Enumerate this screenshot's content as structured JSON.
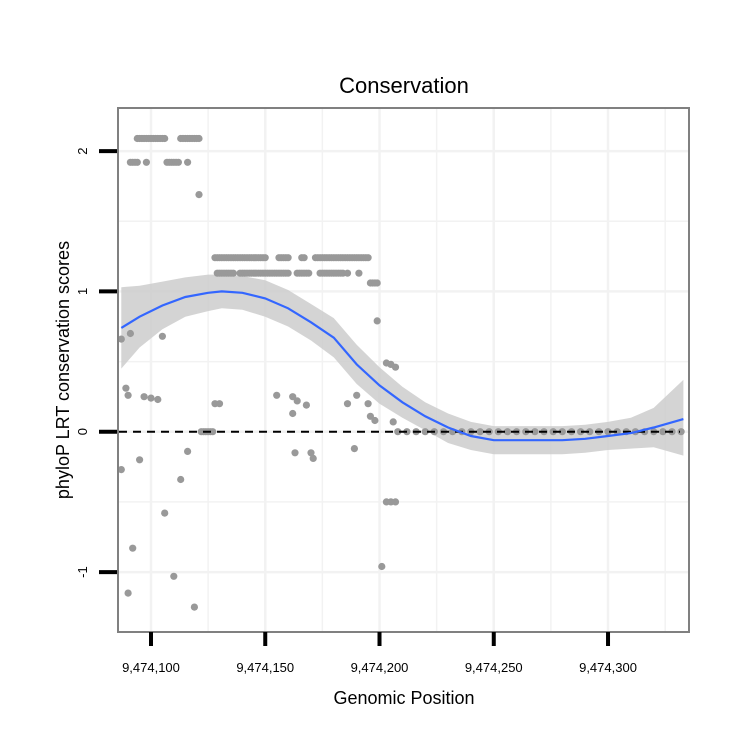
{
  "chart_data": {
    "type": "scatter",
    "title": "Conservation",
    "xlabel": "Genomic Position",
    "ylabel": "phyloP LRT conservation scores",
    "xlim": [
      9474086,
      9474335
    ],
    "ylim": [
      -1.42,
      2.3
    ],
    "x_ticks": [
      {
        "value": 9474100,
        "label": "9,474,100"
      },
      {
        "value": 9474150,
        "label": "9,474,150"
      },
      {
        "value": 9474200,
        "label": "9,474,200"
      },
      {
        "value": 9474250,
        "label": "9,474,250"
      },
      {
        "value": 9474300,
        "label": "9,474,300"
      }
    ],
    "y_ticks": [
      {
        "value": -1,
        "label": "-1"
      },
      {
        "value": 0,
        "label": "0"
      },
      {
        "value": 1,
        "label": "1"
      },
      {
        "value": 2,
        "label": "2"
      }
    ],
    "minor_x": [
      9474125,
      9474175,
      9474225,
      9474275,
      9474325
    ],
    "minor_y": [
      -0.5,
      0.5,
      1.5
    ],
    "reference_line": {
      "y": 0,
      "style": "dashed",
      "color": "#000000"
    },
    "colors": {
      "points": "#999999",
      "smooth_line": "#3366FF",
      "confidence_band": "#CCCCCC",
      "panel_border": "#808080",
      "grid": "#F2F2F2"
    },
    "points": [
      {
        "x": 9474094,
        "y": 2.09
      },
      {
        "x": 9474095,
        "y": 2.09
      },
      {
        "x": 9474096,
        "y": 2.09
      },
      {
        "x": 9474097,
        "y": 2.09
      },
      {
        "x": 9474098,
        "y": 2.09
      },
      {
        "x": 9474099,
        "y": 2.09
      },
      {
        "x": 9474100,
        "y": 2.09
      },
      {
        "x": 9474101,
        "y": 2.09
      },
      {
        "x": 9474102,
        "y": 2.09
      },
      {
        "x": 9474103,
        "y": 2.09
      },
      {
        "x": 9474104,
        "y": 2.09
      },
      {
        "x": 9474105,
        "y": 2.09
      },
      {
        "x": 9474106,
        "y": 2.09
      },
      {
        "x": 9474113,
        "y": 2.09
      },
      {
        "x": 9474114,
        "y": 2.09
      },
      {
        "x": 9474115,
        "y": 2.09
      },
      {
        "x": 9474116,
        "y": 2.09
      },
      {
        "x": 9474117,
        "y": 2.09
      },
      {
        "x": 9474118,
        "y": 2.09
      },
      {
        "x": 9474119,
        "y": 2.09
      },
      {
        "x": 9474120,
        "y": 2.09
      },
      {
        "x": 9474121,
        "y": 2.09
      },
      {
        "x": 9474091,
        "y": 1.92
      },
      {
        "x": 9474092,
        "y": 1.92
      },
      {
        "x": 9474093,
        "y": 1.92
      },
      {
        "x": 9474094,
        "y": 1.92
      },
      {
        "x": 9474098,
        "y": 1.92
      },
      {
        "x": 9474107,
        "y": 1.92
      },
      {
        "x": 9474108,
        "y": 1.92
      },
      {
        "x": 9474109,
        "y": 1.92
      },
      {
        "x": 9474110,
        "y": 1.92
      },
      {
        "x": 9474111,
        "y": 1.92
      },
      {
        "x": 9474112,
        "y": 1.92
      },
      {
        "x": 9474116,
        "y": 1.92
      },
      {
        "x": 9474121,
        "y": 1.69
      },
      {
        "x": 9474128,
        "y": 1.24
      },
      {
        "x": 9474129,
        "y": 1.24
      },
      {
        "x": 9474130,
        "y": 1.24
      },
      {
        "x": 9474131,
        "y": 1.24
      },
      {
        "x": 9474132,
        "y": 1.24
      },
      {
        "x": 9474133,
        "y": 1.24
      },
      {
        "x": 9474134,
        "y": 1.24
      },
      {
        "x": 9474135,
        "y": 1.24
      },
      {
        "x": 9474136,
        "y": 1.24
      },
      {
        "x": 9474137,
        "y": 1.24
      },
      {
        "x": 9474138,
        "y": 1.24
      },
      {
        "x": 9474139,
        "y": 1.24
      },
      {
        "x": 9474140,
        "y": 1.24
      },
      {
        "x": 9474141,
        "y": 1.24
      },
      {
        "x": 9474142,
        "y": 1.24
      },
      {
        "x": 9474143,
        "y": 1.24
      },
      {
        "x": 9474144,
        "y": 1.24
      },
      {
        "x": 9474145,
        "y": 1.24
      },
      {
        "x": 9474146,
        "y": 1.24
      },
      {
        "x": 9474147,
        "y": 1.24
      },
      {
        "x": 9474148,
        "y": 1.24
      },
      {
        "x": 9474149,
        "y": 1.24
      },
      {
        "x": 9474150,
        "y": 1.24
      },
      {
        "x": 9474156,
        "y": 1.24
      },
      {
        "x": 9474157,
        "y": 1.24
      },
      {
        "x": 9474158,
        "y": 1.24
      },
      {
        "x": 9474159,
        "y": 1.24
      },
      {
        "x": 9474160,
        "y": 1.24
      },
      {
        "x": 9474166,
        "y": 1.24
      },
      {
        "x": 9474167,
        "y": 1.24
      },
      {
        "x": 9474172,
        "y": 1.24
      },
      {
        "x": 9474173,
        "y": 1.24
      },
      {
        "x": 9474174,
        "y": 1.24
      },
      {
        "x": 9474175,
        "y": 1.24
      },
      {
        "x": 9474176,
        "y": 1.24
      },
      {
        "x": 9474177,
        "y": 1.24
      },
      {
        "x": 9474178,
        "y": 1.24
      },
      {
        "x": 9474179,
        "y": 1.24
      },
      {
        "x": 9474180,
        "y": 1.24
      },
      {
        "x": 9474181,
        "y": 1.24
      },
      {
        "x": 9474182,
        "y": 1.24
      },
      {
        "x": 9474183,
        "y": 1.24
      },
      {
        "x": 9474184,
        "y": 1.24
      },
      {
        "x": 9474185,
        "y": 1.24
      },
      {
        "x": 9474186,
        "y": 1.24
      },
      {
        "x": 9474187,
        "y": 1.24
      },
      {
        "x": 9474188,
        "y": 1.24
      },
      {
        "x": 9474189,
        "y": 1.24
      },
      {
        "x": 9474190,
        "y": 1.24
      },
      {
        "x": 9474191,
        "y": 1.24
      },
      {
        "x": 9474192,
        "y": 1.24
      },
      {
        "x": 9474193,
        "y": 1.24
      },
      {
        "x": 9474194,
        "y": 1.24
      },
      {
        "x": 9474195,
        "y": 1.24
      },
      {
        "x": 9474129,
        "y": 1.13
      },
      {
        "x": 9474130,
        "y": 1.13
      },
      {
        "x": 9474131,
        "y": 1.13
      },
      {
        "x": 9474132,
        "y": 1.13
      },
      {
        "x": 9474133,
        "y": 1.13
      },
      {
        "x": 9474134,
        "y": 1.13
      },
      {
        "x": 9474135,
        "y": 1.13
      },
      {
        "x": 9474136,
        "y": 1.13
      },
      {
        "x": 9474139,
        "y": 1.13
      },
      {
        "x": 9474140,
        "y": 1.13
      },
      {
        "x": 9474141,
        "y": 1.13
      },
      {
        "x": 9474142,
        "y": 1.13
      },
      {
        "x": 9474143,
        "y": 1.13
      },
      {
        "x": 9474144,
        "y": 1.13
      },
      {
        "x": 9474145,
        "y": 1.13
      },
      {
        "x": 9474146,
        "y": 1.13
      },
      {
        "x": 9474147,
        "y": 1.13
      },
      {
        "x": 9474148,
        "y": 1.13
      },
      {
        "x": 9474149,
        "y": 1.13
      },
      {
        "x": 9474150,
        "y": 1.13
      },
      {
        "x": 9474151,
        "y": 1.13
      },
      {
        "x": 9474152,
        "y": 1.13
      },
      {
        "x": 9474153,
        "y": 1.13
      },
      {
        "x": 9474154,
        "y": 1.13
      },
      {
        "x": 9474155,
        "y": 1.13
      },
      {
        "x": 9474156,
        "y": 1.13
      },
      {
        "x": 9474157,
        "y": 1.13
      },
      {
        "x": 9474158,
        "y": 1.13
      },
      {
        "x": 9474159,
        "y": 1.13
      },
      {
        "x": 9474160,
        "y": 1.13
      },
      {
        "x": 9474164,
        "y": 1.13
      },
      {
        "x": 9474165,
        "y": 1.13
      },
      {
        "x": 9474166,
        "y": 1.13
      },
      {
        "x": 9474167,
        "y": 1.13
      },
      {
        "x": 9474168,
        "y": 1.13
      },
      {
        "x": 9474169,
        "y": 1.13
      },
      {
        "x": 9474174,
        "y": 1.13
      },
      {
        "x": 9474175,
        "y": 1.13
      },
      {
        "x": 9474176,
        "y": 1.13
      },
      {
        "x": 9474177,
        "y": 1.13
      },
      {
        "x": 9474178,
        "y": 1.13
      },
      {
        "x": 9474179,
        "y": 1.13
      },
      {
        "x": 9474180,
        "y": 1.13
      },
      {
        "x": 9474181,
        "y": 1.13
      },
      {
        "x": 9474182,
        "y": 1.13
      },
      {
        "x": 9474183,
        "y": 1.13
      },
      {
        "x": 9474184,
        "y": 1.13
      },
      {
        "x": 9474186,
        "y": 1.13
      },
      {
        "x": 9474191,
        "y": 1.13
      },
      {
        "x": 9474196,
        "y": 1.06
      },
      {
        "x": 9474197,
        "y": 1.06
      },
      {
        "x": 9474198,
        "y": 1.06
      },
      {
        "x": 9474199,
        "y": 1.06
      },
      {
        "x": 9474087,
        "y": 0.66
      },
      {
        "x": 9474091,
        "y": 0.7
      },
      {
        "x": 9474105,
        "y": 0.68
      },
      {
        "x": 9474199,
        "y": 0.79
      },
      {
        "x": 9474203,
        "y": 0.49
      },
      {
        "x": 9474205,
        "y": 0.48
      },
      {
        "x": 9474207,
        "y": 0.46
      },
      {
        "x": 9474089,
        "y": 0.31
      },
      {
        "x": 9474090,
        "y": 0.26
      },
      {
        "x": 9474097,
        "y": 0.25
      },
      {
        "x": 9474100,
        "y": 0.24
      },
      {
        "x": 9474103,
        "y": 0.23
      },
      {
        "x": 9474128,
        "y": 0.2
      },
      {
        "x": 9474130,
        "y": 0.2
      },
      {
        "x": 9474155,
        "y": 0.26
      },
      {
        "x": 9474162,
        "y": 0.25
      },
      {
        "x": 9474164,
        "y": 0.22
      },
      {
        "x": 9474168,
        "y": 0.19
      },
      {
        "x": 9474162,
        "y": 0.13
      },
      {
        "x": 9474186,
        "y": 0.2
      },
      {
        "x": 9474190,
        "y": 0.26
      },
      {
        "x": 9474195,
        "y": 0.2
      },
      {
        "x": 9474196,
        "y": 0.11
      },
      {
        "x": 9474198,
        "y": 0.08
      },
      {
        "x": 9474206,
        "y": 0.07
      },
      {
        "x": 9474122,
        "y": 0.0
      },
      {
        "x": 9474123,
        "y": 0.0
      },
      {
        "x": 9474124,
        "y": 0.0
      },
      {
        "x": 9474125,
        "y": 0.0
      },
      {
        "x": 9474126,
        "y": 0.0
      },
      {
        "x": 9474127,
        "y": 0.0
      },
      {
        "x": 9474208,
        "y": 0.0
      },
      {
        "x": 9474212,
        "y": 0.0
      },
      {
        "x": 9474216,
        "y": 0.0
      },
      {
        "x": 9474220,
        "y": 0.0
      },
      {
        "x": 9474224,
        "y": 0.0
      },
      {
        "x": 9474228,
        "y": 0.0
      },
      {
        "x": 9474232,
        "y": 0.0
      },
      {
        "x": 9474236,
        "y": 0.0
      },
      {
        "x": 9474240,
        "y": 0.0
      },
      {
        "x": 9474244,
        "y": 0.0
      },
      {
        "x": 9474248,
        "y": 0.0
      },
      {
        "x": 9474252,
        "y": 0.0
      },
      {
        "x": 9474256,
        "y": 0.0
      },
      {
        "x": 9474260,
        "y": 0.0
      },
      {
        "x": 9474264,
        "y": 0.0
      },
      {
        "x": 9474268,
        "y": 0.0
      },
      {
        "x": 9474272,
        "y": 0.0
      },
      {
        "x": 9474276,
        "y": 0.0
      },
      {
        "x": 9474280,
        "y": 0.0
      },
      {
        "x": 9474284,
        "y": 0.0
      },
      {
        "x": 9474288,
        "y": 0.0
      },
      {
        "x": 9474292,
        "y": 0.0
      },
      {
        "x": 9474296,
        "y": 0.0
      },
      {
        "x": 9474300,
        "y": 0.0
      },
      {
        "x": 9474304,
        "y": 0.0
      },
      {
        "x": 9474308,
        "y": 0.0
      },
      {
        "x": 9474312,
        "y": 0.0
      },
      {
        "x": 9474316,
        "y": 0.0
      },
      {
        "x": 9474320,
        "y": 0.0
      },
      {
        "x": 9474324,
        "y": 0.0
      },
      {
        "x": 9474328,
        "y": 0.0
      },
      {
        "x": 9474332,
        "y": 0.0
      },
      {
        "x": 9474087,
        "y": -0.27
      },
      {
        "x": 9474116,
        "y": -0.14
      },
      {
        "x": 9474163,
        "y": -0.15
      },
      {
        "x": 9474170,
        "y": -0.15
      },
      {
        "x": 9474171,
        "y": -0.19
      },
      {
        "x": 9474189,
        "y": -0.12
      },
      {
        "x": 9474095,
        "y": -0.2
      },
      {
        "x": 9474113,
        "y": -0.34
      },
      {
        "x": 9474106,
        "y": -0.58
      },
      {
        "x": 9474203,
        "y": -0.5
      },
      {
        "x": 9474205,
        "y": -0.5
      },
      {
        "x": 9474207,
        "y": -0.5
      },
      {
        "x": 9474092,
        "y": -0.83
      },
      {
        "x": 9474110,
        "y": -1.03
      },
      {
        "x": 9474201,
        "y": -0.96
      },
      {
        "x": 9474090,
        "y": -1.15
      },
      {
        "x": 9474119,
        "y": -1.25
      }
    ],
    "smooth": [
      {
        "x": 9474087,
        "y": 0.74
      },
      {
        "x": 9474095,
        "y": 0.82
      },
      {
        "x": 9474105,
        "y": 0.9
      },
      {
        "x": 9474115,
        "y": 0.96
      },
      {
        "x": 9474125,
        "y": 0.99
      },
      {
        "x": 9474131,
        "y": 1.0
      },
      {
        "x": 9474140,
        "y": 0.99
      },
      {
        "x": 9474150,
        "y": 0.95
      },
      {
        "x": 9474160,
        "y": 0.88
      },
      {
        "x": 9474170,
        "y": 0.78
      },
      {
        "x": 9474180,
        "y": 0.67
      },
      {
        "x": 9474190,
        "y": 0.48
      },
      {
        "x": 9474200,
        "y": 0.33
      },
      {
        "x": 9474210,
        "y": 0.21
      },
      {
        "x": 9474220,
        "y": 0.11
      },
      {
        "x": 9474230,
        "y": 0.03
      },
      {
        "x": 9474240,
        "y": -0.03
      },
      {
        "x": 9474250,
        "y": -0.06
      },
      {
        "x": 9474260,
        "y": -0.06
      },
      {
        "x": 9474270,
        "y": -0.06
      },
      {
        "x": 9474280,
        "y": -0.06
      },
      {
        "x": 9474290,
        "y": -0.05
      },
      {
        "x": 9474300,
        "y": -0.03
      },
      {
        "x": 9474310,
        "y": -0.01
      },
      {
        "x": 9474320,
        "y": 0.03
      },
      {
        "x": 9474333,
        "y": 0.09
      }
    ],
    "ci_upper": [
      {
        "x": 9474087,
        "y": 1.03
      },
      {
        "x": 9474095,
        "y": 1.04
      },
      {
        "x": 9474105,
        "y": 1.07
      },
      {
        "x": 9474115,
        "y": 1.1
      },
      {
        "x": 9474125,
        "y": 1.12
      },
      {
        "x": 9474131,
        "y": 1.12
      },
      {
        "x": 9474140,
        "y": 1.11
      },
      {
        "x": 9474150,
        "y": 1.08
      },
      {
        "x": 9474160,
        "y": 1.01
      },
      {
        "x": 9474170,
        "y": 0.91
      },
      {
        "x": 9474180,
        "y": 0.81
      },
      {
        "x": 9474190,
        "y": 0.62
      },
      {
        "x": 9474200,
        "y": 0.46
      },
      {
        "x": 9474210,
        "y": 0.32
      },
      {
        "x": 9474220,
        "y": 0.21
      },
      {
        "x": 9474230,
        "y": 0.13
      },
      {
        "x": 9474240,
        "y": 0.07
      },
      {
        "x": 9474250,
        "y": 0.04
      },
      {
        "x": 9474260,
        "y": 0.04
      },
      {
        "x": 9474270,
        "y": 0.04
      },
      {
        "x": 9474280,
        "y": 0.04
      },
      {
        "x": 9474290,
        "y": 0.05
      },
      {
        "x": 9474300,
        "y": 0.07
      },
      {
        "x": 9474310,
        "y": 0.1
      },
      {
        "x": 9474320,
        "y": 0.17
      },
      {
        "x": 9474333,
        "y": 0.37
      }
    ],
    "ci_lower": [
      {
        "x": 9474087,
        "y": 0.45
      },
      {
        "x": 9474095,
        "y": 0.6
      },
      {
        "x": 9474105,
        "y": 0.73
      },
      {
        "x": 9474115,
        "y": 0.82
      },
      {
        "x": 9474125,
        "y": 0.86
      },
      {
        "x": 9474131,
        "y": 0.88
      },
      {
        "x": 9474140,
        "y": 0.87
      },
      {
        "x": 9474150,
        "y": 0.82
      },
      {
        "x": 9474160,
        "y": 0.75
      },
      {
        "x": 9474170,
        "y": 0.65
      },
      {
        "x": 9474180,
        "y": 0.53
      },
      {
        "x": 9474190,
        "y": 0.34
      },
      {
        "x": 9474200,
        "y": 0.2
      },
      {
        "x": 9474210,
        "y": 0.1
      },
      {
        "x": 9474220,
        "y": 0.01
      },
      {
        "x": 9474230,
        "y": -0.08
      },
      {
        "x": 9474240,
        "y": -0.13
      },
      {
        "x": 9474250,
        "y": -0.16
      },
      {
        "x": 9474260,
        "y": -0.16
      },
      {
        "x": 9474270,
        "y": -0.16
      },
      {
        "x": 9474280,
        "y": -0.16
      },
      {
        "x": 9474290,
        "y": -0.15
      },
      {
        "x": 9474300,
        "y": -0.13
      },
      {
        "x": 9474310,
        "y": -0.12
      },
      {
        "x": 9474320,
        "y": -0.11
      },
      {
        "x": 9474333,
        "y": -0.17
      }
    ]
  }
}
